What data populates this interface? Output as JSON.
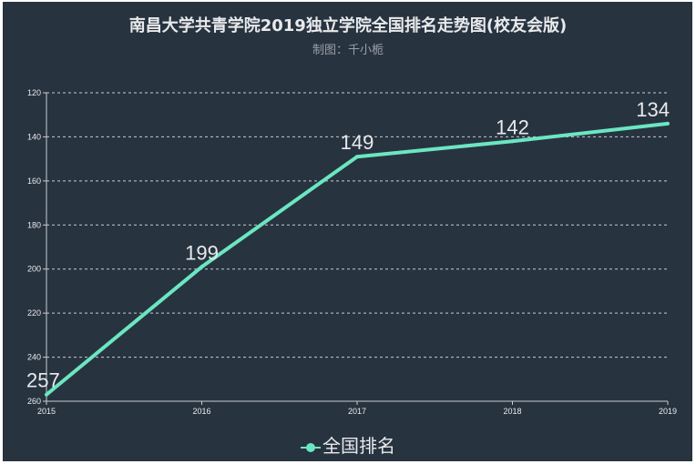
{
  "chart_data": {
    "type": "line",
    "title": "南昌大学共青学院2019独立学院全国排名走势图(校友会版)",
    "subtitle": "制图：千小栀",
    "categories": [
      "2015",
      "2016",
      "2017",
      "2018",
      "2019"
    ],
    "series": [
      {
        "name": "全国排名",
        "values": [
          257,
          199,
          149,
          142,
          134
        ],
        "color": "#6be6c1"
      }
    ],
    "ylim": [
      120,
      260
    ],
    "y_inverted": true,
    "yticks": [
      120,
      140,
      160,
      180,
      200,
      220,
      240,
      260
    ],
    "grid": true,
    "legend": "bottom"
  }
}
